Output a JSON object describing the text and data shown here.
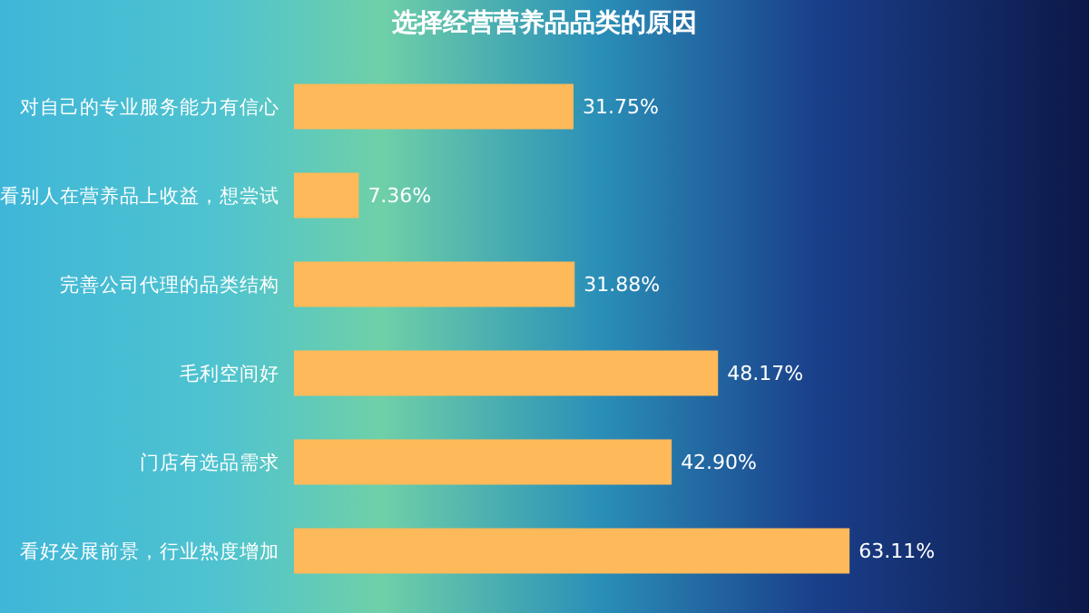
{
  "chart_data": {
    "type": "bar",
    "orientation": "horizontal",
    "title": "选择经营营养品品类的原因",
    "categories": [
      "对自己的专业服务能力有信心",
      "看别人在营养品上收益，想尝试",
      "完善公司代理的品类结构",
      "毛利空间好",
      "门店有选品需求",
      "看好发展前景，行业热度增加"
    ],
    "values": [
      31.75,
      7.36,
      31.88,
      48.17,
      42.9,
      63.11
    ],
    "value_labels": [
      "31.75%",
      "7.36%",
      "31.88%",
      "48.17%",
      "42.90%",
      "63.11%"
    ],
    "color": "#fdb95a",
    "tick_labels": "y"
  }
}
